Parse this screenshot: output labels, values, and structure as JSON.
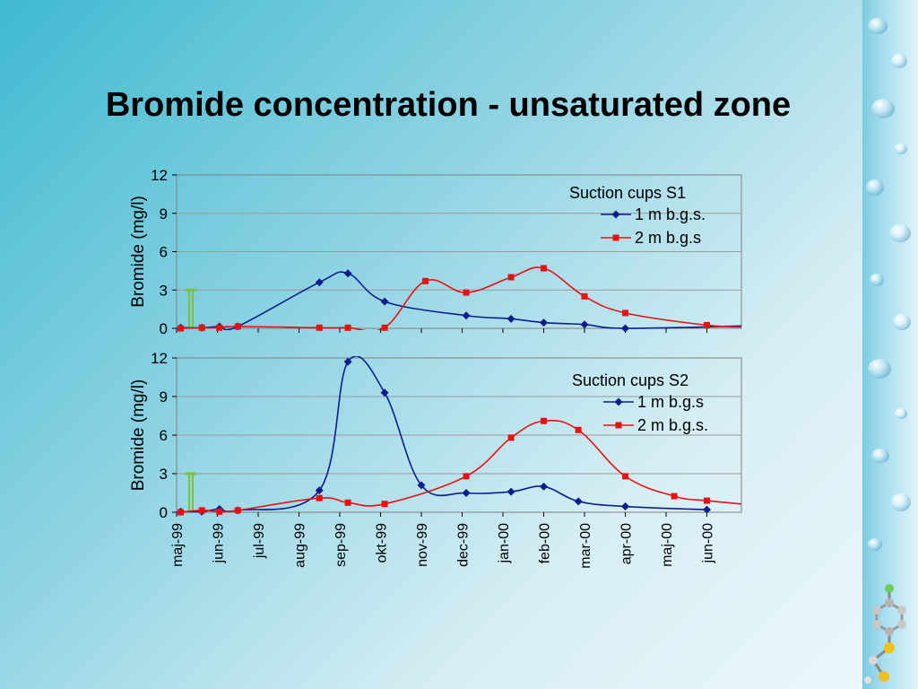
{
  "slide": {
    "title": "Bromide concentration - unsaturated zone"
  },
  "colors": {
    "series1": "#0b1f8c",
    "series2": "#e81010",
    "marker": "#7bbf3a"
  },
  "months": [
    "maj-99",
    "jun-99",
    "jul-99",
    "aug-99",
    "sep-99",
    "okt-99",
    "nov-99",
    "dec-99",
    "jan-00",
    "feb-00",
    "mar-00",
    "apr-00",
    "maj-00",
    "jun-00"
  ],
  "chart_data": [
    {
      "type": "line",
      "title": "",
      "ylabel": "Bromide (mg/l)",
      "ylim": [
        0,
        12
      ],
      "yticks": [
        "0",
        "3",
        "6",
        "9",
        "12"
      ],
      "legend_title": "Suction cups S1",
      "legend_placement": "top-right",
      "grid": true,
      "series": [
        {
          "name": "1 m b.g.s.",
          "points": [
            [
              0.1,
              0.05
            ],
            [
              0.62,
              0.05
            ],
            [
              1.05,
              0.15
            ],
            [
              1.5,
              0.15
            ],
            [
              3.5,
              3.6
            ],
            [
              4.2,
              4.3
            ],
            [
              5.1,
              2.1
            ],
            [
              7.1,
              1.0
            ],
            [
              8.2,
              0.75
            ],
            [
              9.0,
              0.45
            ],
            [
              10.0,
              0.3
            ],
            [
              11.0,
              0.0
            ],
            [
              14.0,
              0.2
            ]
          ]
        },
        {
          "name": "2 m b.g.s",
          "points": [
            [
              0.1,
              0.0
            ],
            [
              0.62,
              0.05
            ],
            [
              1.05,
              0.05
            ],
            [
              1.5,
              0.15
            ],
            [
              3.5,
              0.05
            ],
            [
              4.2,
              0.05
            ],
            [
              5.1,
              0.05
            ],
            [
              6.1,
              3.7
            ],
            [
              7.1,
              2.8
            ],
            [
              8.2,
              4.0
            ],
            [
              9.0,
              4.7
            ],
            [
              10.0,
              2.5
            ],
            [
              11.0,
              1.2
            ],
            [
              13.0,
              0.25
            ],
            [
              14.0,
              0.1
            ]
          ]
        }
      ],
      "annotation": {
        "x": 0.35,
        "y": 3.0
      }
    },
    {
      "type": "line",
      "title": "",
      "ylabel": "Bromide (mg/l)",
      "ylim": [
        0,
        12
      ],
      "yticks": [
        "0",
        "3",
        "6",
        "9",
        "12"
      ],
      "legend_title": "Suction cups  S2",
      "legend_placement": "top-right",
      "grid": true,
      "series": [
        {
          "name": "1 m b.g.s",
          "points": [
            [
              0.1,
              0.05
            ],
            [
              0.62,
              0.05
            ],
            [
              1.05,
              0.25
            ],
            [
              1.5,
              0.15
            ],
            [
              3.5,
              1.7
            ],
            [
              4.2,
              11.7
            ],
            [
              5.1,
              9.3
            ],
            [
              6.0,
              2.1
            ],
            [
              7.1,
              1.5
            ],
            [
              8.2,
              1.6
            ],
            [
              9.0,
              2.0
            ],
            [
              9.85,
              0.85
            ],
            [
              11.0,
              0.45
            ],
            [
              13.0,
              0.2
            ]
          ]
        },
        {
          "name": "2 m b.g.s.",
          "points": [
            [
              0.1,
              0.0
            ],
            [
              0.62,
              0.15
            ],
            [
              1.05,
              0.05
            ],
            [
              1.5,
              0.15
            ],
            [
              3.5,
              1.1
            ],
            [
              4.2,
              0.75
            ],
            [
              5.1,
              0.65
            ],
            [
              7.1,
              2.8
            ],
            [
              8.2,
              5.8
            ],
            [
              9.0,
              7.1
            ],
            [
              9.85,
              6.4
            ],
            [
              11.0,
              2.8
            ],
            [
              12.2,
              1.25
            ],
            [
              13.0,
              0.9
            ],
            [
              14.0,
              0.6
            ]
          ]
        }
      ],
      "annotation": {
        "x": 0.35,
        "y": 3.0
      }
    }
  ]
}
